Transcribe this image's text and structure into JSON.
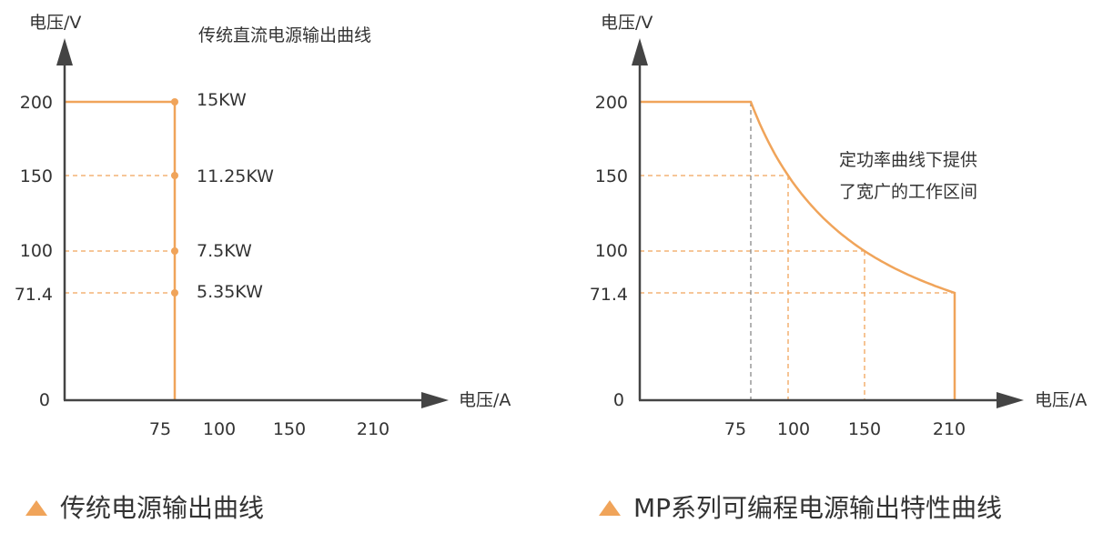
{
  "colors": {
    "accent": "#F0A45A",
    "axis": "#444444",
    "text": "#333333",
    "guide_gray": "#888888"
  },
  "chart_data": [
    {
      "type": "line",
      "title": "传统直流电源输出曲线",
      "caption": "传统电源输出曲线",
      "ylabel": "电压/V",
      "xlabel": "电压/A",
      "y_ticks": [
        "200",
        "150",
        "100",
        "71.4",
        "0"
      ],
      "x_ticks": [
        "75",
        "100",
        "150",
        "210"
      ],
      "series": [
        {
          "x": [
            0,
            75,
            75
          ],
          "y": [
            200,
            200,
            0
          ]
        }
      ],
      "points": [
        {
          "x": 75,
          "y": 200,
          "label": "15KW"
        },
        {
          "x": 75,
          "y": 150,
          "label": "11.25KW"
        },
        {
          "x": 75,
          "y": 100,
          "label": "7.5KW"
        },
        {
          "x": 75,
          "y": 71.4,
          "label": "5.35KW"
        }
      ],
      "guides": [
        {
          "y": 150,
          "x_to": 75
        },
        {
          "y": 100,
          "x_to": 75
        },
        {
          "y": 71.4,
          "x_to": 75
        }
      ]
    },
    {
      "type": "line",
      "title": "",
      "caption": "MP系列可编程电源输出特性曲线",
      "ylabel": "电压/V",
      "xlabel": "电压/A",
      "y_ticks": [
        "200",
        "150",
        "100",
        "71.4",
        "0"
      ],
      "x_ticks": [
        "75",
        "100",
        "150",
        "210"
      ],
      "annotation": [
        "定功率曲线下提供",
        "了宽广的工作区间"
      ],
      "series": [
        {
          "x": [
            0,
            75,
            100,
            150,
            210,
            210
          ],
          "y": [
            200,
            200,
            150,
            100,
            71.4,
            0
          ]
        }
      ],
      "guides": [
        {
          "y": 150,
          "x_to": 100
        },
        {
          "y": 100,
          "x_to": 150
        },
        {
          "y": 71.4,
          "x_to": 210
        }
      ],
      "vguides": [
        {
          "x": 75,
          "y_to": 200,
          "color": "gray"
        },
        {
          "x": 100,
          "y_to": 150
        },
        {
          "x": 150,
          "y_to": 100
        }
      ]
    }
  ]
}
